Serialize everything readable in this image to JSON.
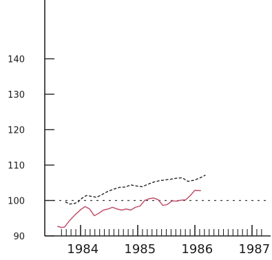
{
  "chart_data": {
    "type": "line",
    "title": "",
    "xlabel": "",
    "ylabel": "",
    "ylim": [
      90,
      145
    ],
    "y_ticks": [
      90,
      100,
      110,
      120,
      130,
      140
    ],
    "y_tick_labels": [
      "90",
      "100",
      "110",
      "120",
      "130",
      "140"
    ],
    "x_range": [
      1983.6,
      1987.2
    ],
    "x_year_labels": [
      {
        "x": 1984,
        "label": "1984"
      },
      {
        "x": 1985,
        "label": "1985"
      },
      {
        "x": 1986,
        "label": "1986"
      },
      {
        "x": 1987,
        "label": "1987"
      }
    ],
    "reference_line": {
      "y": 100,
      "style": "dashed"
    },
    "grid": false,
    "series": [
      {
        "style": "dashed",
        "color": "#222222",
        "points": [
          [
            1983.74,
            99.6
          ],
          [
            1983.8,
            99.0
          ],
          [
            1983.88,
            99.1
          ],
          [
            1983.95,
            99.5
          ],
          [
            1984.02,
            100.6
          ],
          [
            1984.1,
            101.4
          ],
          [
            1984.18,
            101.2
          ],
          [
            1984.28,
            100.9
          ],
          [
            1984.38,
            101.7
          ],
          [
            1984.48,
            102.6
          ],
          [
            1984.58,
            103.2
          ],
          [
            1984.68,
            103.7
          ],
          [
            1984.78,
            103.8
          ],
          [
            1984.88,
            104.4
          ],
          [
            1984.98,
            104.1
          ],
          [
            1985.08,
            103.9
          ],
          [
            1985.18,
            104.6
          ],
          [
            1985.28,
            105.2
          ],
          [
            1985.38,
            105.6
          ],
          [
            1985.48,
            105.8
          ],
          [
            1985.58,
            106.0
          ],
          [
            1985.68,
            106.3
          ],
          [
            1985.78,
            106.4
          ],
          [
            1985.88,
            105.4
          ],
          [
            1985.98,
            105.7
          ],
          [
            1986.08,
            106.3
          ],
          [
            1986.18,
            107.1
          ]
        ]
      },
      {
        "style": "solid",
        "color": "#c0506a",
        "points": [
          [
            1983.6,
            92.7
          ],
          [
            1983.66,
            92.4
          ],
          [
            1983.72,
            92.5
          ],
          [
            1983.8,
            94.2
          ],
          [
            1983.9,
            95.9
          ],
          [
            1984.0,
            97.4
          ],
          [
            1984.08,
            98.3
          ],
          [
            1984.16,
            97.6
          ],
          [
            1984.24,
            95.7
          ],
          [
            1984.32,
            96.4
          ],
          [
            1984.4,
            97.3
          ],
          [
            1984.48,
            97.6
          ],
          [
            1984.56,
            98.1
          ],
          [
            1984.64,
            97.6
          ],
          [
            1984.72,
            97.3
          ],
          [
            1984.8,
            97.6
          ],
          [
            1984.88,
            97.3
          ],
          [
            1984.96,
            98.1
          ],
          [
            1985.04,
            98.4
          ],
          [
            1985.12,
            100.0
          ],
          [
            1985.2,
            100.5
          ],
          [
            1985.28,
            100.7
          ],
          [
            1985.36,
            100.2
          ],
          [
            1985.44,
            98.6
          ],
          [
            1985.52,
            98.9
          ],
          [
            1985.6,
            99.9
          ],
          [
            1985.68,
            99.8
          ],
          [
            1985.76,
            100.1
          ],
          [
            1985.84,
            100.2
          ],
          [
            1985.92,
            101.4
          ],
          [
            1986.0,
            102.9
          ],
          [
            1986.1,
            102.8
          ]
        ]
      }
    ]
  }
}
